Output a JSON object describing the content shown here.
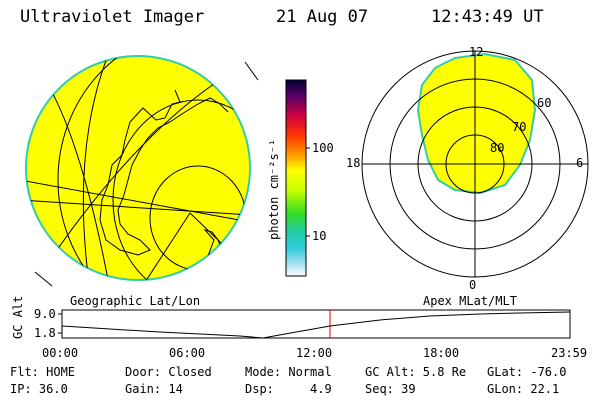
{
  "header": {
    "instrument": "Ultraviolet Imager",
    "date": "21 Aug 07",
    "time": "12:43:49 UT"
  },
  "colorbar": {
    "label": "photon cm⁻²s⁻¹",
    "tick_100": "100",
    "tick_10": "10"
  },
  "geo_map": {
    "label": "Geographic Lat/Lon",
    "fill_color": "#ffff00",
    "rim_color": "#33ccaa"
  },
  "polar_plot": {
    "label": "Apex MLat/MLT",
    "mlt_top": "12",
    "mlt_left": "18",
    "mlt_right": "6",
    "mlt_bottom": "0",
    "lat_60": "60",
    "lat_70": "70",
    "lat_80": "80"
  },
  "timeline": {
    "ylabel": "GC Alt",
    "ytick_top": "9.0",
    "ytick_bottom": "1.8",
    "xticks": [
      "00:00",
      "06:00",
      "12:00",
      "18:00",
      "23:59"
    ],
    "marker_color": "#dd0000"
  },
  "status": {
    "flt": "Flt: HOME",
    "ip": "IP: 36.0",
    "door": "Door: Closed",
    "gain": "Gain: 14",
    "mode": "Mode: Normal",
    "dsp_label": "Dsp:",
    "dsp_value": "4.9",
    "gc_alt": "GC Alt: 5.8 Re",
    "seq": "Seq: 39",
    "glat": "GLat: -76.0",
    "glon": "GLon: 22.1"
  }
}
